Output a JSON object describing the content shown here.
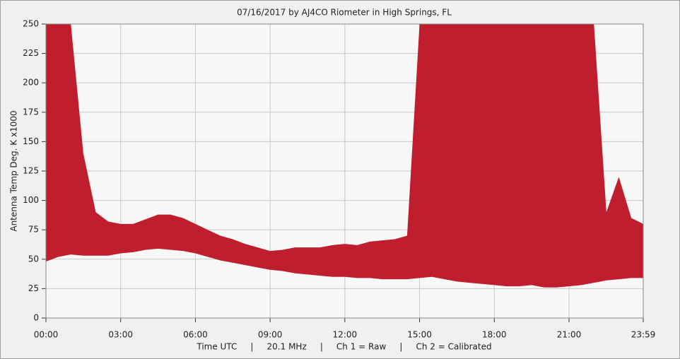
{
  "chart_data": {
    "type": "range-area",
    "title": "07/16/2017  by  AJ4CO Riometer  in  High Springs, FL",
    "ylabel": "Antenna Temp Deg. K x1000",
    "footer": "Time UTC     |     20.1 MHz     |     Ch 1 = Raw     |     Ch 2 = Calibrated",
    "x": [
      0,
      0.5,
      1,
      1.5,
      2,
      2.5,
      3,
      3.5,
      4,
      4.5,
      5,
      5.5,
      6,
      6.5,
      7,
      7.5,
      8,
      8.5,
      9,
      9.5,
      10,
      10.5,
      11,
      11.5,
      12,
      12.5,
      13,
      13.5,
      14,
      14.5,
      15,
      15.5,
      16,
      16.5,
      17,
      17.5,
      18,
      18.5,
      19,
      19.5,
      20,
      20.5,
      21,
      21.5,
      22,
      22.5,
      23,
      23.5,
      23.98
    ],
    "series": [
      {
        "color": "#be1e2d",
        "high": [
          250,
          250,
          250,
          140,
          90,
          82,
          80,
          80,
          84,
          88,
          88,
          85,
          80,
          75,
          70,
          67,
          63,
          60,
          57,
          58,
          60,
          60,
          60,
          62,
          63,
          62,
          65,
          66,
          67,
          70,
          250,
          250,
          250,
          250,
          250,
          250,
          250,
          250,
          250,
          250,
          250,
          250,
          250,
          250,
          250,
          90,
          120,
          85,
          80
        ],
        "low": [
          48,
          52,
          54,
          53,
          53,
          53,
          55,
          56,
          58,
          59,
          58,
          57,
          55,
          52,
          49,
          47,
          45,
          43,
          41,
          40,
          38,
          37,
          36,
          35,
          35,
          34,
          34,
          33,
          33,
          33,
          34,
          35,
          33,
          31,
          30,
          29,
          28,
          27,
          27,
          28,
          26,
          26,
          27,
          28,
          30,
          32,
          33,
          34,
          34
        ]
      }
    ],
    "xlim": [
      0,
      23.98
    ],
    "xticks": [
      {
        "value": 0,
        "label": "00:00"
      },
      {
        "value": 3,
        "label": "03:00"
      },
      {
        "value": 6,
        "label": "06:00"
      },
      {
        "value": 9,
        "label": "09:00"
      },
      {
        "value": 12,
        "label": "12:00"
      },
      {
        "value": 15,
        "label": "15:00"
      },
      {
        "value": 18,
        "label": "18:00"
      },
      {
        "value": 21,
        "label": "21:00"
      },
      {
        "value": 23.98,
        "label": "23:59"
      }
    ],
    "ylim": [
      0,
      250
    ],
    "yticks": [
      0,
      25,
      50,
      75,
      100,
      125,
      150,
      175,
      200,
      225,
      250
    ],
    "grid": true
  }
}
